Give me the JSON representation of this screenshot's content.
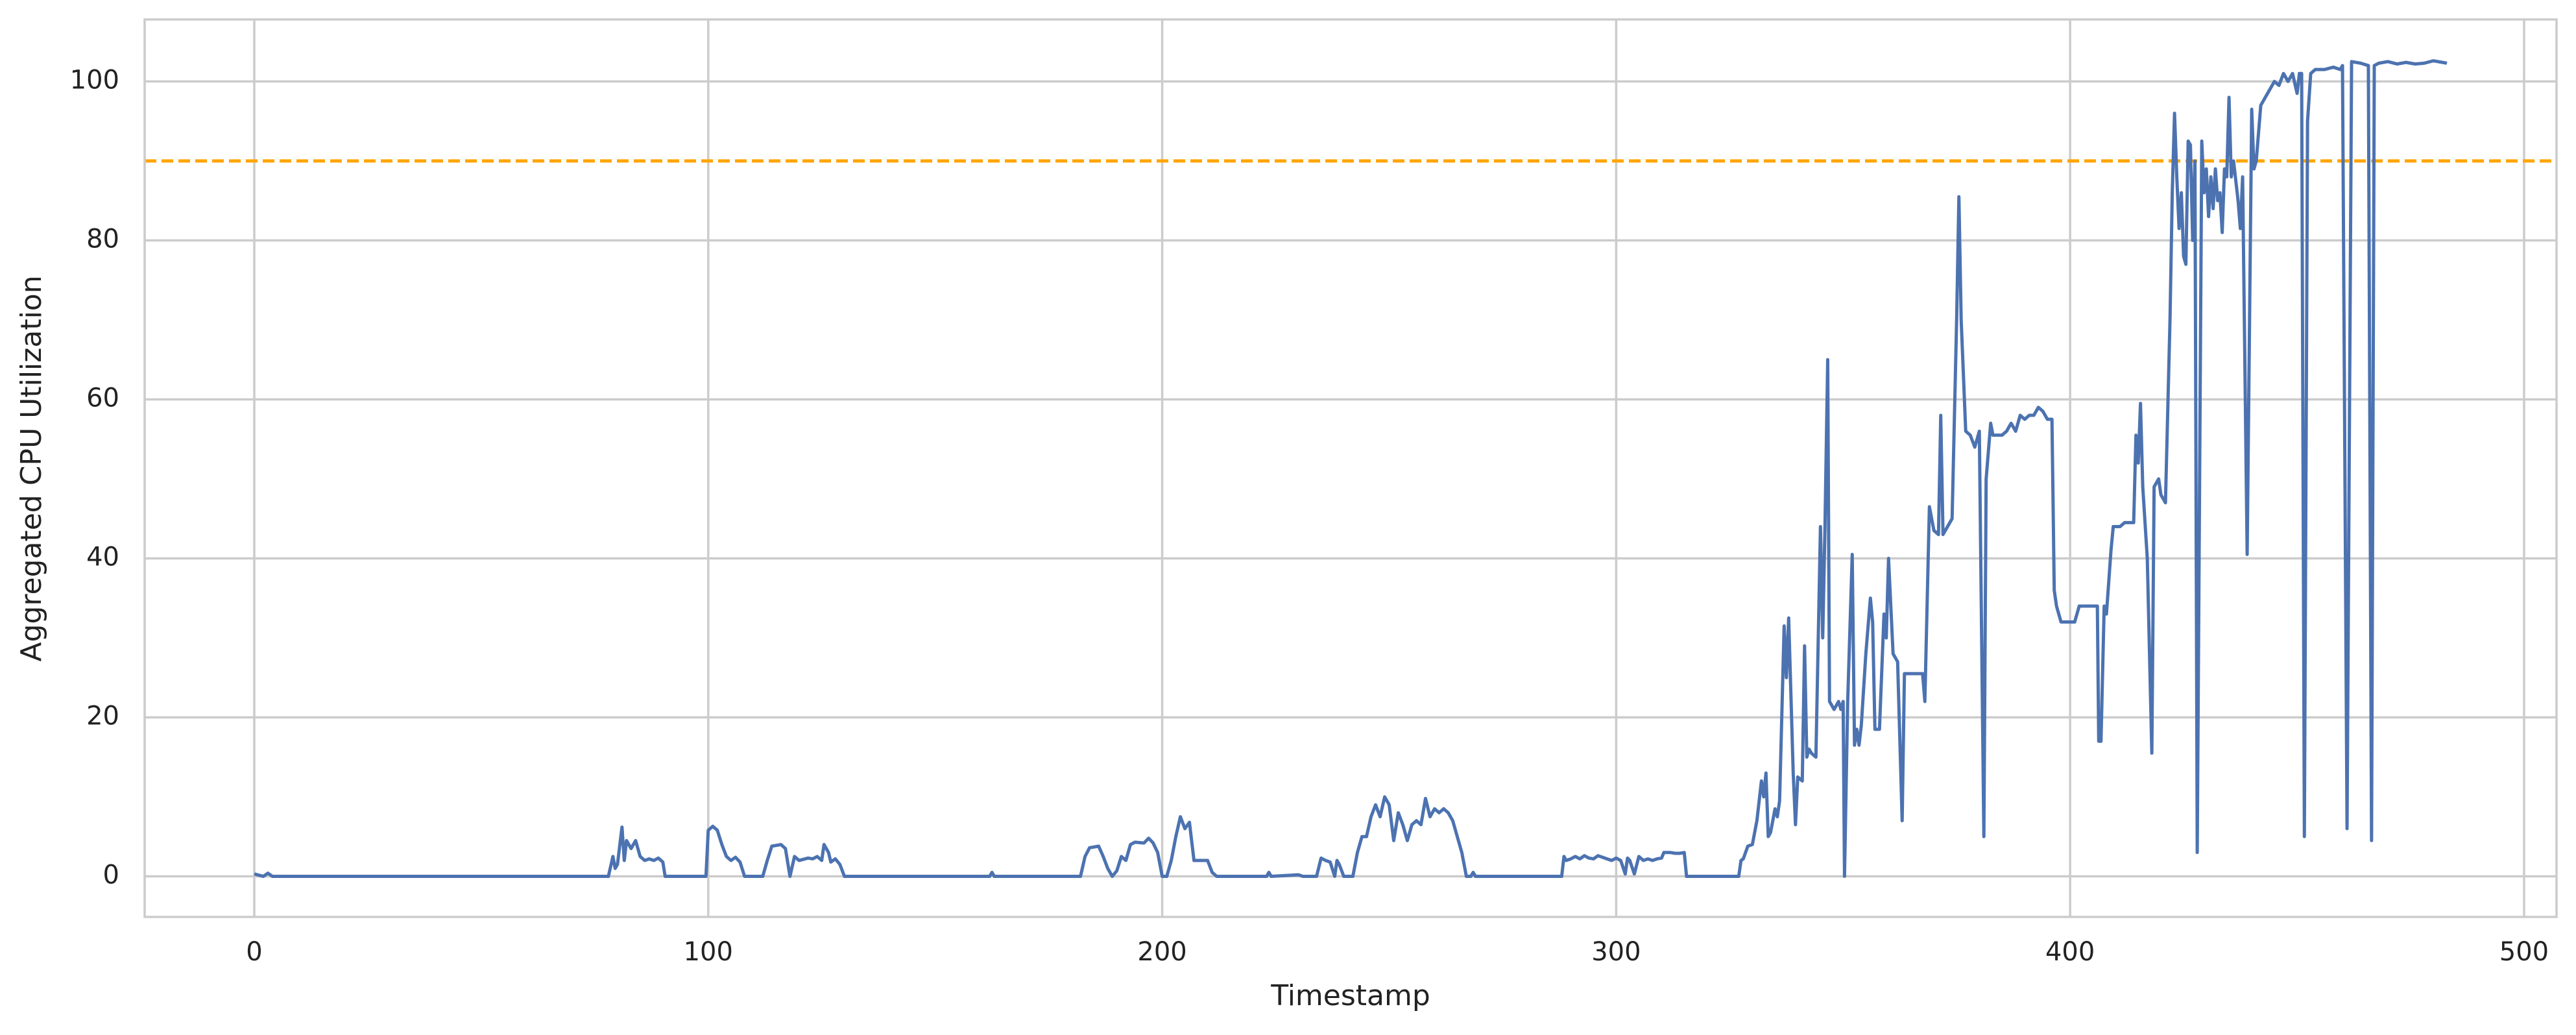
{
  "chart_data": {
    "type": "line",
    "xlabel": "Timestamp",
    "ylabel": "Aggregated CPU Utilization",
    "x": [
      0,
      2,
      3,
      4,
      78,
      79,
      79.5,
      80,
      81,
      81.5,
      82,
      83,
      84,
      85,
      86,
      87,
      88,
      89,
      90,
      90.5,
      99.5,
      100,
      101,
      102,
      103,
      104,
      105,
      106,
      107,
      108,
      112,
      113,
      114,
      116,
      117,
      118,
      119,
      120,
      122,
      123,
      124,
      125,
      125.5,
      126.5,
      127,
      128,
      129,
      130,
      162,
      162.5,
      163,
      182,
      183,
      184,
      186,
      187,
      188,
      189,
      190,
      191,
      192,
      193,
      194,
      196,
      197,
      198,
      199,
      200,
      201,
      202,
      203,
      204,
      205,
      206,
      207,
      210,
      211,
      212,
      223,
      223.5,
      224,
      230,
      231,
      234,
      235,
      236,
      237,
      238,
      238.5,
      239,
      240,
      242,
      243,
      244,
      245,
      246,
      247,
      248,
      249,
      250,
      251,
      252,
      253,
      254,
      255,
      256,
      257,
      258,
      259,
      260,
      261,
      262,
      263,
      264,
      265,
      266,
      267,
      268,
      268.5,
      269,
      288,
      288.5,
      289,
      290,
      291,
      292,
      293,
      294,
      295,
      296,
      297,
      298,
      299,
      300,
      301,
      302,
      302.5,
      303,
      304,
      305,
      306,
      307,
      308,
      309,
      310,
      310.5,
      312,
      313,
      314,
      315,
      315.5,
      327,
      327.5,
      328,
      329,
      330,
      331,
      332,
      332.5,
      333,
      333.5,
      334,
      335,
      335.5,
      336,
      337,
      337.5,
      338,
      339,
      339.5,
      340,
      341,
      341.5,
      342,
      342.5,
      343,
      344,
      345,
      345.5,
      346,
      346.6,
      347,
      348,
      349,
      349.5,
      350,
      350.3,
      351,
      352,
      352.5,
      353,
      353.5,
      354,
      355,
      356,
      356.5,
      357,
      358,
      359,
      359.5,
      360,
      361,
      362,
      363,
      363.5,
      366,
      367.5,
      368,
      369,
      370,
      371,
      371.5,
      372,
      373,
      374,
      375,
      375.5,
      376,
      377,
      378,
      379,
      380,
      381,
      381.5,
      382.5,
      383,
      385,
      386,
      387,
      387.5,
      388,
      389,
      390,
      391,
      392,
      393,
      394,
      395,
      396,
      396.5,
      397,
      398,
      401,
      402,
      405,
      406,
      406.3,
      406.8,
      407.5,
      408,
      409,
      409.5,
      411,
      412,
      413,
      414,
      414.5,
      415,
      415.5,
      416,
      417,
      418,
      418.5,
      419.5,
      420,
      421,
      422,
      422.5,
      423,
      423.5,
      424,
      424.5,
      425,
      425.5,
      426,
      426.5,
      427,
      427.5,
      428,
      429,
      429.5,
      430,
      430.5,
      431,
      431.5,
      432,
      432.5,
      433,
      433.5,
      434,
      434.5,
      435,
      435.5,
      436,
      437,
      437.5,
      438,
      439,
      440,
      440.5,
      441,
      442,
      443,
      444,
      445,
      446,
      447,
      448,
      449,
      450,
      450.5,
      451,
      451.6,
      452.3,
      453,
      454,
      456,
      458,
      459.5,
      460,
      461,
      462,
      464,
      465.7,
      466.4,
      467,
      468,
      470,
      472,
      474,
      476,
      478,
      480,
      482,
      483
    ],
    "values": [
      0.3,
      0,
      0.4,
      0,
      0,
      2.5,
      1,
      1.5,
      6.2,
      2,
      4.5,
      3.5,
      4.5,
      2.5,
      2,
      2.2,
      2,
      2.3,
      1.8,
      0,
      0,
      5.8,
      6.3,
      5.8,
      4,
      2.5,
      2,
      2.4,
      1.8,
      0,
      0,
      2,
      3.8,
      4,
      3.5,
      0,
      2.5,
      2,
      2.3,
      2.2,
      2.5,
      2,
      4,
      3,
      1.8,
      2.2,
      1.5,
      0,
      0,
      0.5,
      0,
      0,
      2.5,
      3.6,
      3.8,
      2.5,
      1,
      0,
      0.7,
      2.5,
      2,
      4,
      4.3,
      4.2,
      4.8,
      4.2,
      3,
      0,
      0,
      2,
      5,
      7.5,
      6,
      6.8,
      2,
      2,
      0.5,
      0,
      0,
      0.5,
      0,
      0.2,
      0,
      0,
      2.3,
      2,
      1.8,
      0,
      2,
      1.5,
      0,
      0,
      3,
      5,
      5,
      7.5,
      9,
      7.5,
      10,
      9,
      4.5,
      8,
      6.5,
      4.5,
      6.5,
      7,
      6.5,
      9.8,
      7.5,
      8.5,
      8,
      8.5,
      8,
      7,
      5,
      3,
      0,
      0,
      0.5,
      0,
      0,
      2.5,
      2,
      2.2,
      2.5,
      2.2,
      2.6,
      2.3,
      2.2,
      2.6,
      2.4,
      2.2,
      2,
      2.3,
      2,
      0.3,
      2.3,
      2,
      0.3,
      2.5,
      2,
      2.2,
      2,
      2.2,
      2.3,
      3,
      3,
      2.9,
      2.9,
      3,
      0,
      0,
      2,
      2.2,
      3.8,
      4,
      7,
      12,
      10,
      13,
      5,
      5.5,
      8.5,
      7.5,
      9.5,
      31.5,
      25,
      32.5,
      13,
      6.5,
      12.5,
      12,
      29,
      15,
      16,
      15.5,
      15,
      44,
      30,
      44,
      65,
      22,
      21,
      22,
      21,
      22,
      0,
      22,
      40.5,
      16.5,
      18.5,
      16.5,
      19,
      28,
      35,
      32,
      18.5,
      18.5,
      33,
      30,
      40,
      28,
      27,
      7,
      25.5,
      25.5,
      25.5,
      22,
      46.5,
      43.5,
      43,
      58,
      43,
      44,
      45,
      70,
      85.5,
      70,
      56,
      55.5,
      54,
      56,
      5,
      50,
      57,
      55.5,
      55.5,
      56,
      57,
      56.5,
      56,
      58,
      57.5,
      58,
      58,
      59,
      58.5,
      57.5,
      57.5,
      36,
      34,
      32,
      32,
      34,
      34,
      34,
      17,
      17,
      34,
      33,
      41,
      44,
      44,
      44.5,
      44.5,
      44.5,
      55.5,
      52,
      59.5,
      49,
      40,
      15.5,
      49,
      50,
      48,
      47,
      70,
      86,
      96,
      88,
      81.5,
      86,
      78,
      77,
      92.5,
      92,
      80,
      90,
      3,
      92.5,
      86,
      89,
      83,
      88,
      84,
      89,
      85,
      86,
      81,
      89,
      88,
      98,
      88,
      90,
      85,
      81.5,
      88,
      40.5,
      96.5,
      89,
      90,
      97,
      98,
      99,
      100,
      99.5,
      101,
      100,
      101,
      98.5,
      101,
      101,
      5,
      95,
      101,
      101.5,
      101.5,
      101.8,
      101.5,
      102,
      6,
      102.5,
      102.3,
      102,
      4.5,
      102,
      102.3,
      102.5,
      102.2,
      102.4,
      102.2,
      102.3,
      102.6,
      102.4,
      102.3
    ],
    "color": "#4c72b0",
    "threshold": {
      "value": 90,
      "color": "#ffa500"
    },
    "xlim": [
      -24.15,
      507.15
    ],
    "xticks": [
      0,
      100,
      200,
      300,
      400,
      500
    ],
    "ylim": [
      -5.1,
      107.8
    ],
    "yticks": [
      0,
      20,
      40,
      60,
      80,
      100
    ],
    "grid": true
  }
}
